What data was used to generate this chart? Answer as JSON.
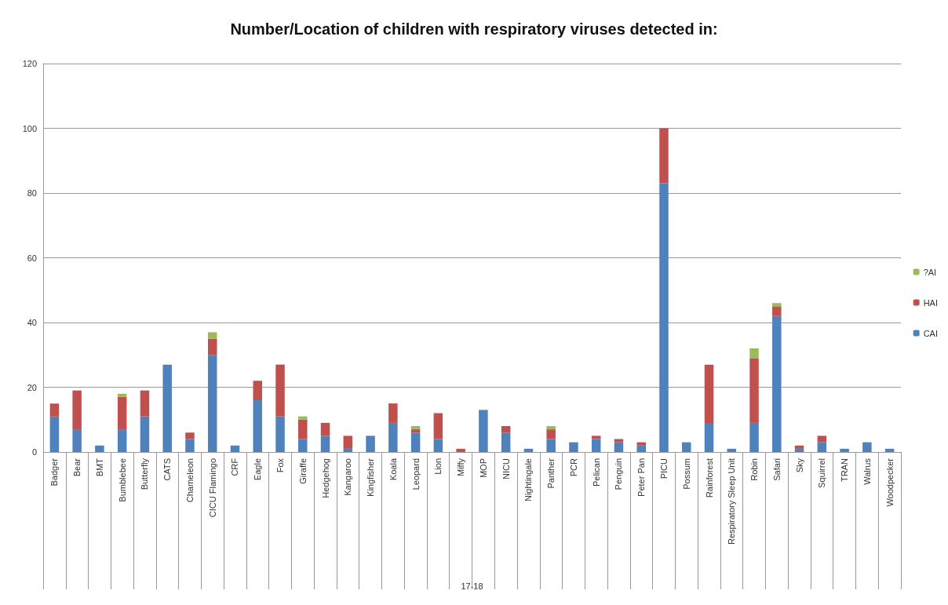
{
  "chart_data": {
    "type": "bar",
    "title": "Number/Location of children with respiratory viruses detected in:",
    "xlabel": "17-18",
    "categories": [
      "Badger",
      "Bear",
      "BMT",
      "Bumblebee",
      "Butterfly",
      "CATS",
      "Chameleon",
      "CICU Flamingo",
      "CRF",
      "Eagle",
      "Fox",
      "Giraffe",
      "Hedgehog",
      "Kangaroo",
      "Kingfisher",
      "Koala",
      "Leopard",
      "Lion",
      "Miffy",
      "MOP",
      "NICU",
      "Nightingale",
      "Panther",
      "PCR",
      "Pelican",
      "Penguin",
      "Peter Pan",
      "PICU",
      "Possum",
      "Rainforest",
      "Respiratory Sleep Unit",
      "Robin",
      "Safari",
      "Sky",
      "Squirrel",
      "TRAN",
      "Walrus",
      "Woodpecker"
    ],
    "series": [
      {
        "name": "CAI",
        "color": "#4f81bd",
        "values": [
          11,
          7,
          2,
          7,
          11,
          27,
          4,
          30,
          2,
          16,
          11,
          4,
          5,
          1,
          5,
          9,
          6,
          4,
          0,
          13,
          6,
          1,
          4,
          3,
          4,
          3,
          2,
          83,
          3,
          9,
          1,
          9,
          42,
          1,
          3,
          1,
          3,
          1
        ]
      },
      {
        "name": "HAI",
        "color": "#c0504d",
        "values": [
          4,
          12,
          0,
          10,
          8,
          0,
          2,
          5,
          0,
          6,
          16,
          6,
          4,
          4,
          0,
          6,
          1,
          8,
          1,
          0,
          2,
          0,
          3,
          0,
          1,
          1,
          1,
          17,
          0,
          18,
          0,
          20,
          3,
          1,
          2,
          0,
          0,
          0
        ]
      },
      {
        "name": "?AI",
        "color": "#9bbb59",
        "values": [
          0,
          0,
          0,
          1,
          0,
          0,
          0,
          2,
          0,
          0,
          0,
          1,
          0,
          0,
          0,
          0,
          1,
          0,
          0,
          0,
          0,
          0,
          1,
          0,
          0,
          0,
          0,
          0,
          0,
          0,
          0,
          3,
          1,
          0,
          0,
          0,
          0,
          0
        ]
      }
    ],
    "stacked": true,
    "ylim": [
      0,
      120
    ],
    "yticks": [
      0,
      20,
      40,
      60,
      80,
      100,
      120
    ],
    "grid": "y",
    "legend": "right"
  }
}
